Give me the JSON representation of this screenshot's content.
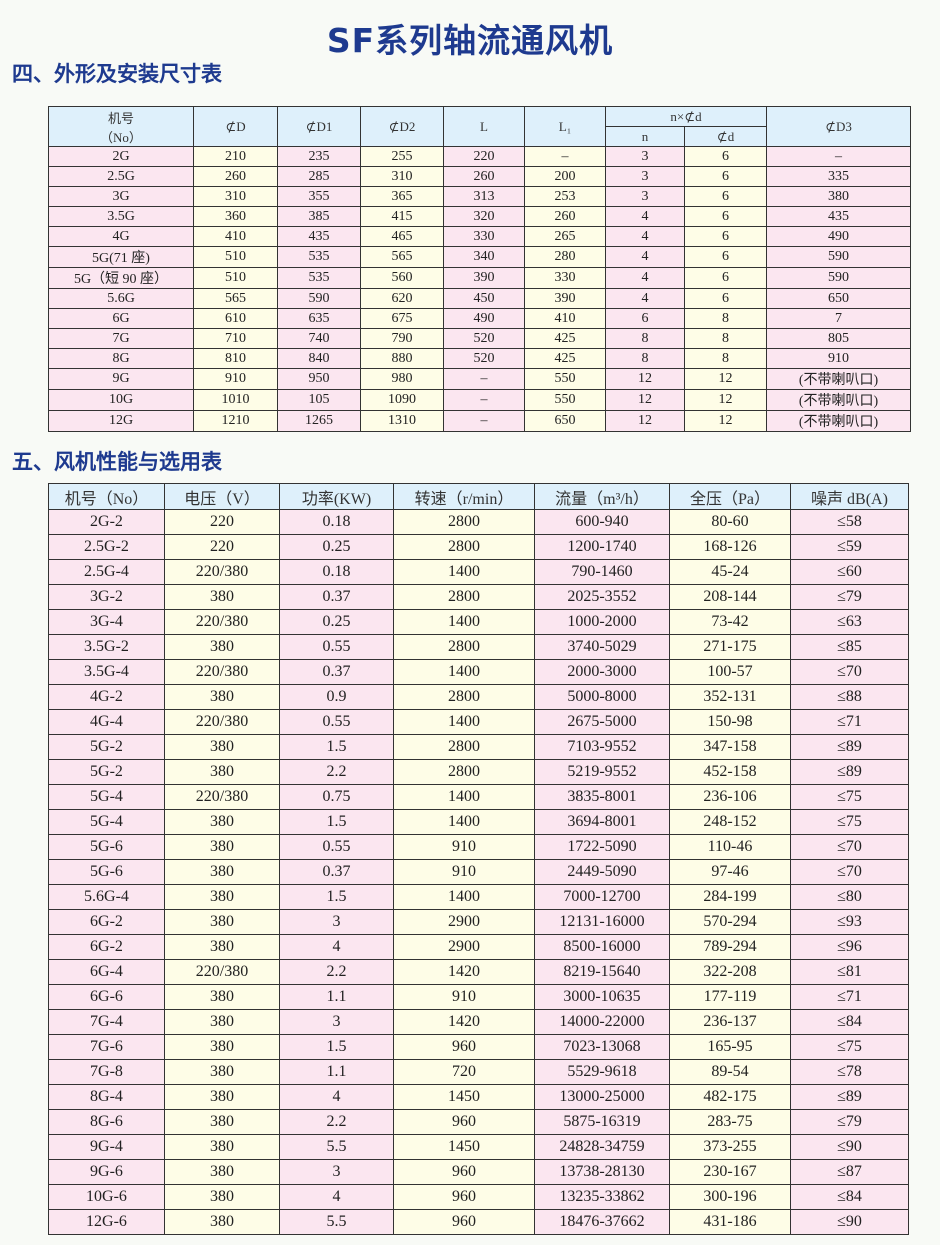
{
  "title": "SF系列轴流通风机",
  "section1": {
    "heading": "四、外形及安装尺寸表",
    "headers": {
      "no_line1": "机号",
      "no_line2": "（No）",
      "D": "⊄D",
      "D1": "⊄D1",
      "D2": "⊄D2",
      "L": "L",
      "L1": "L₁",
      "nxd": "n×⊄d",
      "n": "n",
      "d": "⊄d",
      "D3": "⊄D3"
    },
    "rows": [
      [
        "2G",
        "210",
        "235",
        "255",
        "220",
        "–",
        "3",
        "6",
        "–"
      ],
      [
        "2.5G",
        "260",
        "285",
        "310",
        "260",
        "200",
        "3",
        "6",
        "335"
      ],
      [
        "3G",
        "310",
        "355",
        "365",
        "313",
        "253",
        "3",
        "6",
        "380"
      ],
      [
        "3.5G",
        "360",
        "385",
        "415",
        "320",
        "260",
        "4",
        "6",
        "435"
      ],
      [
        "4G",
        "410",
        "435",
        "465",
        "330",
        "265",
        "4",
        "6",
        "490"
      ],
      [
        "5G(71 座)",
        "510",
        "535",
        "565",
        "340",
        "280",
        "4",
        "6",
        "590"
      ],
      [
        "5G（短 90 座）",
        "510",
        "535",
        "560",
        "390",
        "330",
        "4",
        "6",
        "590"
      ],
      [
        "5.6G",
        "565",
        "590",
        "620",
        "450",
        "390",
        "4",
        "6",
        "650"
      ],
      [
        "6G",
        "610",
        "635",
        "675",
        "490",
        "410",
        "6",
        "8",
        "7"
      ],
      [
        "7G",
        "710",
        "740",
        "790",
        "520",
        "425",
        "8",
        "8",
        "805"
      ],
      [
        "8G",
        "810",
        "840",
        "880",
        "520",
        "425",
        "8",
        "8",
        "910"
      ],
      [
        "9G",
        "910",
        "950",
        "980",
        "–",
        "550",
        "12",
        "12",
        "(不带喇叭口)"
      ],
      [
        "10G",
        "1010",
        "105",
        "1090",
        "–",
        "550",
        "12",
        "12",
        "(不带喇叭口)"
      ],
      [
        "12G",
        "1210",
        "1265",
        "1310",
        "–",
        "650",
        "12",
        "12",
        "(不带喇叭口)"
      ]
    ]
  },
  "section2": {
    "heading": "五、风机性能与选用表",
    "headers": [
      "机号（No）",
      "电压（V）",
      "功率(KW)",
      "转速（r/min）",
      "流量（m³/h）",
      "全压（Pa）",
      "噪声 dB(A)"
    ],
    "rows": [
      [
        "2G-2",
        "220",
        "0.18",
        "2800",
        "600-940",
        "80-60",
        "≤58"
      ],
      [
        "2.5G-2",
        "220",
        "0.25",
        "2800",
        "1200-1740",
        "168-126",
        "≤59"
      ],
      [
        "2.5G-4",
        "220/380",
        "0.18",
        "1400",
        "790-1460",
        "45-24",
        "≤60"
      ],
      [
        "3G-2",
        "380",
        "0.37",
        "2800",
        "2025-3552",
        "208-144",
        "≤79"
      ],
      [
        "3G-4",
        "220/380",
        "0.25",
        "1400",
        "1000-2000",
        "73-42",
        "≤63"
      ],
      [
        "3.5G-2",
        "380",
        "0.55",
        "2800",
        "3740-5029",
        "271-175",
        "≤85"
      ],
      [
        "3.5G-4",
        "220/380",
        "0.37",
        "1400",
        "2000-3000",
        "100-57",
        "≤70"
      ],
      [
        "4G-2",
        "380",
        "0.9",
        "2800",
        "5000-8000",
        "352-131",
        "≤88"
      ],
      [
        "4G-4",
        "220/380",
        "0.55",
        "1400",
        "2675-5000",
        "150-98",
        "≤71"
      ],
      [
        "5G-2",
        "380",
        "1.5",
        "2800",
        "7103-9552",
        "347-158",
        "≤89"
      ],
      [
        "5G-2",
        "380",
        "2.2",
        "2800",
        "5219-9552",
        "452-158",
        "≤89"
      ],
      [
        "5G-4",
        "220/380",
        "0.75",
        "1400",
        "3835-8001",
        "236-106",
        "≤75"
      ],
      [
        "5G-4",
        "380",
        "1.5",
        "1400",
        "3694-8001",
        "248-152",
        "≤75"
      ],
      [
        "5G-6",
        "380",
        "0.55",
        "910",
        "1722-5090",
        "110-46",
        "≤70"
      ],
      [
        "5G-6",
        "380",
        "0.37",
        "910",
        "2449-5090",
        "97-46",
        "≤70"
      ],
      [
        "5.6G-4",
        "380",
        "1.5",
        "1400",
        "7000-12700",
        "284-199",
        "≤80"
      ],
      [
        "6G-2",
        "380",
        "3",
        "2900",
        "12131-16000",
        "570-294",
        "≤93"
      ],
      [
        "6G-2",
        "380",
        "4",
        "2900",
        "8500-16000",
        "789-294",
        "≤96"
      ],
      [
        "6G-4",
        "220/380",
        "2.2",
        "1420",
        "8219-15640",
        "322-208",
        "≤81"
      ],
      [
        "6G-6",
        "380",
        "1.1",
        "910",
        "3000-10635",
        "177-119",
        "≤71"
      ],
      [
        "7G-4",
        "380",
        "3",
        "1420",
        "14000-22000",
        "236-137",
        "≤84"
      ],
      [
        "7G-6",
        "380",
        "1.5",
        "960",
        "7023-13068",
        "165-95",
        "≤75"
      ],
      [
        "7G-8",
        "380",
        "1.1",
        "720",
        "5529-9618",
        "89-54",
        "≤78"
      ],
      [
        "8G-4",
        "380",
        "4",
        "1450",
        "13000-25000",
        "482-175",
        "≤89"
      ],
      [
        "8G-6",
        "380",
        "2.2",
        "960",
        "5875-16319",
        "283-75",
        "≤79"
      ],
      [
        "9G-4",
        "380",
        "5.5",
        "1450",
        "24828-34759",
        "373-255",
        "≤90"
      ],
      [
        "9G-6",
        "380",
        "3",
        "960",
        "13738-28130",
        "230-167",
        "≤87"
      ],
      [
        "10G-6",
        "380",
        "4",
        "960",
        "13235-33862",
        "300-196",
        "≤84"
      ],
      [
        "12G-6",
        "380",
        "5.5",
        "960",
        "18476-37662",
        "431-186",
        "≤90"
      ]
    ]
  },
  "colors": {
    "title": "#1e3a8f",
    "header_bg": "#def0fb",
    "pink_column": "#fbe6f0",
    "yellow_column": "#fefde7"
  }
}
